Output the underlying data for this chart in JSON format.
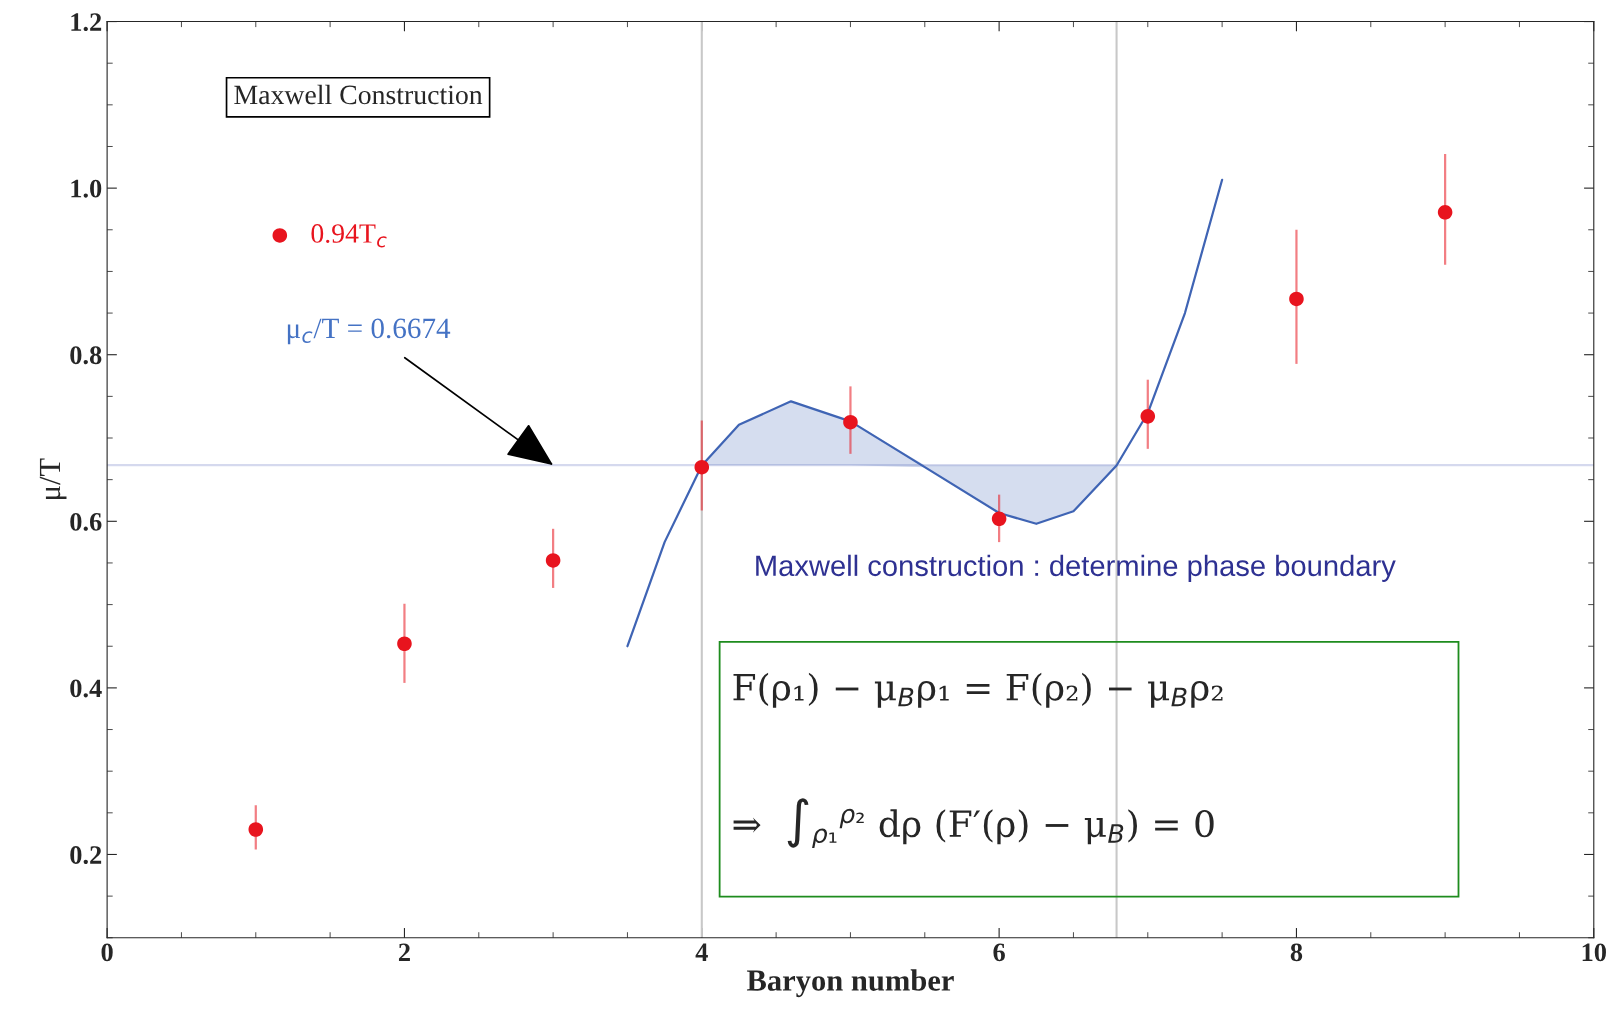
{
  "chart_data": {
    "type": "scatter",
    "xlabel": "Baryon number",
    "ylabel": "μ/T",
    "xlim": [
      0,
      10
    ],
    "ylim": [
      0.1,
      1.2
    ],
    "xticks": [
      0,
      2,
      4,
      6,
      8,
      10
    ],
    "yticks": [
      0.2,
      0.4,
      0.6,
      0.8,
      {
        "value": 1.0,
        "label": "1.0"
      },
      1.2
    ],
    "grid": false,
    "legend": "top left",
    "x": [
      1,
      2,
      3,
      4,
      5,
      6,
      7,
      8,
      9
    ],
    "series": [
      {
        "name": "0.94T$_{c}$",
        "marker": "circle",
        "color": "#e8141e",
        "values": [
          0.23,
          0.453,
          0.553,
          0.665,
          0.719,
          0.603,
          0.726,
          0.867,
          0.971
        ],
        "errors": [
          [
            0.206,
            0.259
          ],
          [
            0.406,
            0.501
          ],
          [
            0.52,
            0.591
          ],
          [
            0.613,
            0.721
          ],
          [
            0.681,
            0.762
          ],
          [
            0.575,
            0.632
          ],
          [
            0.687,
            0.77
          ],
          [
            0.789,
            0.95
          ],
          [
            0.908,
            1.041
          ]
        ]
      },
      {
        "type": "line",
        "marker": "none",
        "color": "#3f64b4",
        "x": [
          3.5,
          3.75,
          4.0,
          4.25,
          4.6,
          5.0,
          5.5,
          6.0,
          6.25,
          6.5,
          6.79,
          7.0,
          7.25,
          7.5
        ],
        "values": [
          0.45,
          0.575,
          0.667,
          0.716,
          0.744,
          0.72,
          0.665,
          0.61,
          0.597,
          0.612,
          0.667,
          0.73,
          0.85,
          1.01
        ],
        "lower": [
          null,
          null,
          0.6674,
          0.6674,
          0.6674,
          0.6674,
          0.665,
          0.61,
          0.597,
          0.612,
          0.6674,
          null,
          null,
          null
        ],
        "upper": [
          null,
          null,
          0.6674,
          0.716,
          0.744,
          0.72,
          0.6674,
          0.6674,
          0.6674,
          0.6674,
          0.6674,
          null,
          null,
          null
        ]
      }
    ],
    "ref_lines": [
      {
        "axis": "y",
        "value": 0.6674,
        "color": "#d5d9ee"
      },
      {
        "axis": "x",
        "value": 4.0,
        "color": "#c8c8c8"
      },
      {
        "axis": "x",
        "value": 6.79,
        "color": "#c8c8c8"
      }
    ],
    "annotations": [
      "Maxwell Construction",
      {
        "text": "μ$_{c}$/T = 0.6674",
        "x": 3.0,
        "y": 0.6674
      },
      "Maxwell construction : determine phase boundary",
      "F(ρ₁) − μ$_{B}$ρ₁ = F(ρ₂) − μ$_{B}$ρ₂",
      "⇒  ∫$_{ρ₁}$$^{ρ₂}$ dρ (F′(ρ) − μ$_{B}$) = 0"
    ]
  }
}
